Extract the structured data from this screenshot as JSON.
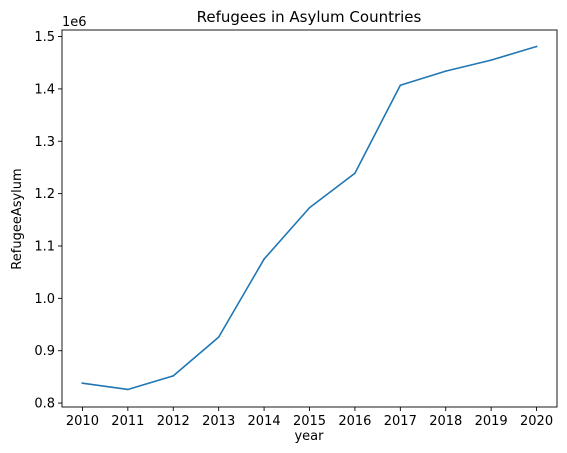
{
  "chart_data": {
    "type": "line",
    "title": "Refugees in Asylum Countries",
    "xlabel": "year",
    "ylabel": "RefugeeAsylum",
    "y_offset_label": "1e6",
    "x": [
      2010,
      2011,
      2012,
      2013,
      2014,
      2015,
      2016,
      2017,
      2018,
      2019,
      2020
    ],
    "x_tick_labels": [
      "2010",
      "2011",
      "2012",
      "2013",
      "2014",
      "2015",
      "2016",
      "2017",
      "2018",
      "2019",
      "2020"
    ],
    "series": [
      {
        "values": [
          838000,
          826000,
          852000,
          926000,
          1075000,
          1173000,
          1239000,
          1407000,
          1434000,
          1455000,
          1481000
        ],
        "color": "#1f77b4"
      }
    ],
    "y_ticks": [
      0.8,
      0.9,
      1.0,
      1.1,
      1.2,
      1.3,
      1.4,
      1.5
    ],
    "y_tick_labels": [
      "0.8",
      "0.9",
      "1.0",
      "1.1",
      "1.2",
      "1.3",
      "1.4",
      "1.5"
    ],
    "ylim": [
      0.8,
      1.5
    ],
    "grid": false,
    "legend": "none"
  }
}
